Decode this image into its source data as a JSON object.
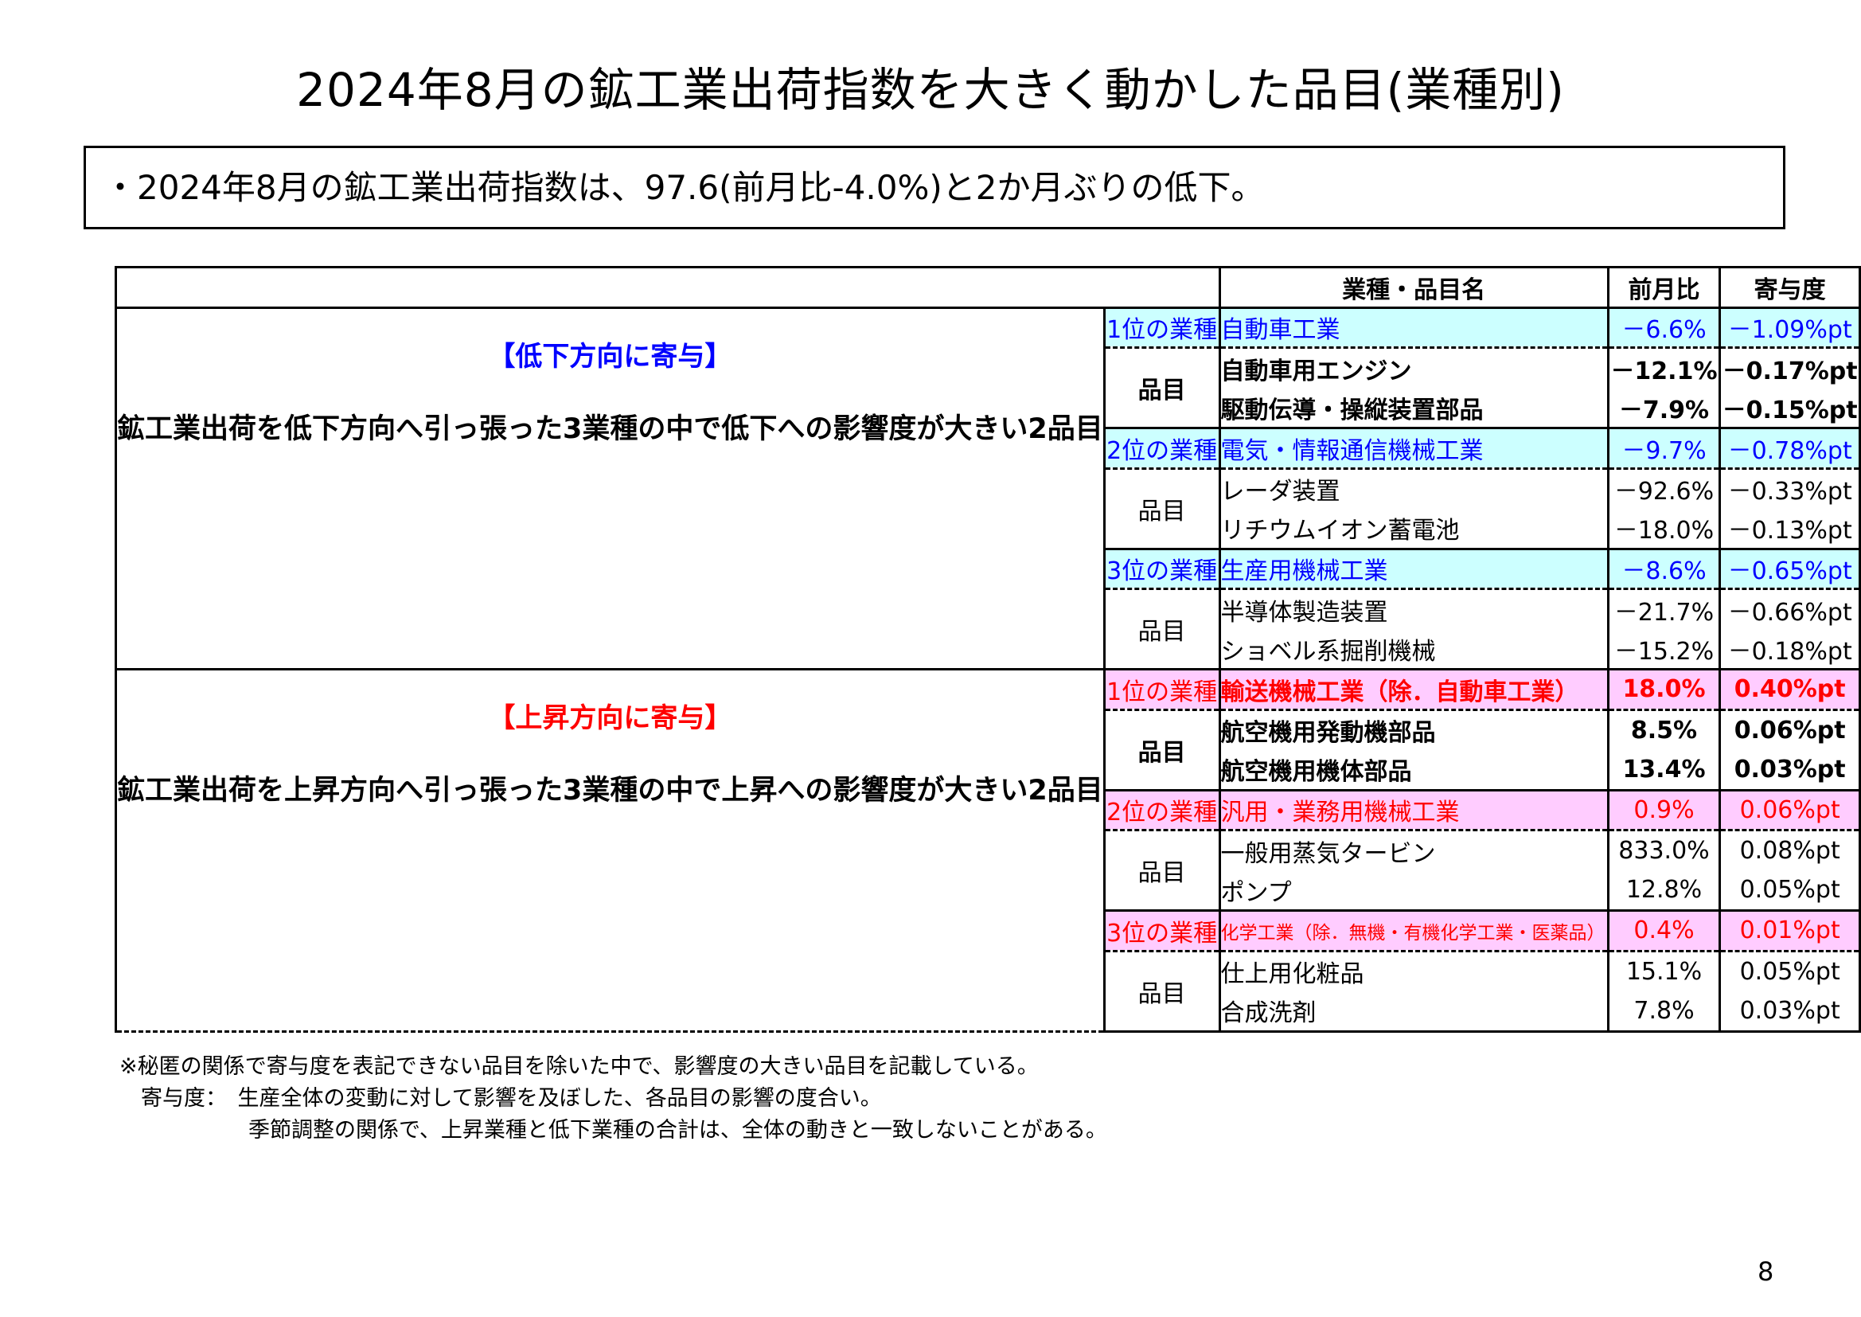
{
  "title": "2024年8月の鉱工業出荷指数を大きく動かした品目(業種別)",
  "summary": "・2024年8月の鉱工業出荷指数は、97.6(前月比-4.0%)と2か月ぶりの低下。",
  "table": {
    "headers": {
      "blank": "",
      "name": "業種・品目名",
      "mom": "前月比",
      "contrib": "寄与度"
    },
    "decrease": {
      "heading": "【低下方向に寄与】",
      "description": "鉱工業出荷を低下方向へ引っ張った3業種の中で低下への影響度が大きい2品目",
      "groups": [
        {
          "rank": "1位の業種",
          "industry": "自動車工業",
          "mom": "－6.6%",
          "contrib": "－1.09%pt",
          "items_label": "品目",
          "items": [
            {
              "name": "自動車用エンジン",
              "mom": "－12.1%",
              "contrib": "－0.17%pt"
            },
            {
              "name": "駆動伝導・操縦装置部品",
              "mom": "－7.9%",
              "contrib": "－0.15%pt"
            }
          ]
        },
        {
          "rank": "2位の業種",
          "industry": "電気・情報通信機械工業",
          "mom": "－9.7%",
          "contrib": "－0.78%pt",
          "items_label": "品目",
          "items": [
            {
              "name": "レーダ装置",
              "mom": "－92.6%",
              "contrib": "－0.33%pt"
            },
            {
              "name": "リチウムイオン蓄電池",
              "mom": "－18.0%",
              "contrib": "－0.13%pt"
            }
          ]
        },
        {
          "rank": "3位の業種",
          "industry": "生産用機械工業",
          "mom": "－8.6%",
          "contrib": "－0.65%pt",
          "items_label": "品目",
          "items": [
            {
              "name": "半導体製造装置",
              "mom": "－21.7%",
              "contrib": "－0.66%pt"
            },
            {
              "name": "ショベル系掘削機械",
              "mom": "－15.2%",
              "contrib": "－0.18%pt"
            }
          ]
        }
      ]
    },
    "increase": {
      "heading": "【上昇方向に寄与】",
      "description": "鉱工業出荷を上昇方向へ引っ張った3業種の中で上昇への影響度が大きい2品目",
      "groups": [
        {
          "rank": "1位の業種",
          "industry": "輸送機械工業（除．自動車工業）",
          "mom": "18.0%",
          "contrib": "0.40%pt",
          "items_label": "品目",
          "items": [
            {
              "name": "航空機用発動機部品",
              "mom": "8.5%",
              "contrib": "0.06%pt"
            },
            {
              "name": "航空機用機体部品",
              "mom": "13.4%",
              "contrib": "0.03%pt"
            }
          ]
        },
        {
          "rank": "2位の業種",
          "industry": "汎用・業務用機械工業",
          "mom": "0.9%",
          "contrib": "0.06%pt",
          "items_label": "品目",
          "items": [
            {
              "name": "一般用蒸気タービン",
              "mom": "833.0%",
              "contrib": "0.08%pt"
            },
            {
              "name": "ポンプ",
              "mom": "12.8%",
              "contrib": "0.05%pt"
            }
          ]
        },
        {
          "rank": "3位の業種",
          "industry": "化学工業（除．無機・有機化学工業・医薬品）",
          "mom": "0.4%",
          "contrib": "0.01%pt",
          "items_label": "品目",
          "items": [
            {
              "name": "仕上用化粧品",
              "mom": "15.1%",
              "contrib": "0.05%pt"
            },
            {
              "name": "合成洗剤",
              "mom": "7.8%",
              "contrib": "0.03%pt"
            }
          ]
        }
      ]
    }
  },
  "notes": {
    "line1": "※秘匿の関係で寄与度を表記できない品目を除いた中で、影響度の大きい品目を記載している。",
    "line2": "　寄与度：　生産全体の変動に対して影響を及ぼした、各品目の影響の度合い。",
    "line3": "　　　　　　季節調整の関係で、上昇業種と低下業種の合計は、全体の動きと一致しないことがある。"
  },
  "page_number": "8",
  "colors": {
    "decrease_bg": "#ccffff",
    "decrease_text": "#0000ff",
    "increase_bg": "#ffccff",
    "increase_text": "#ff0000"
  }
}
